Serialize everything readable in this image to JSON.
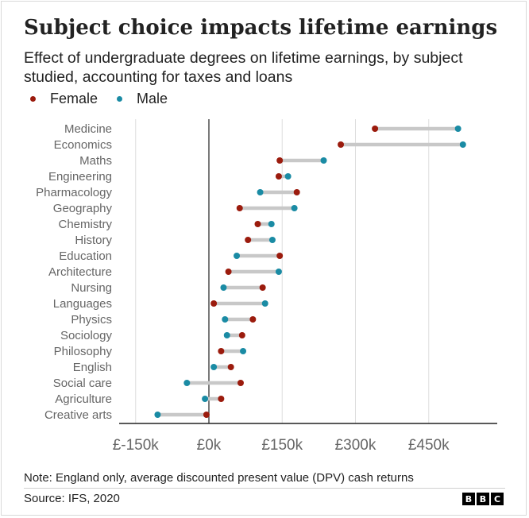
{
  "title": "Subject choice impacts lifetime earnings",
  "subtitle": "Effect of undergraduate degrees on lifetime earnings, by subject studied, accounting for taxes and loans",
  "note": "Note: England only, average discounted present value (DPV) cash returns",
  "source": "Source: IFS, 2020",
  "logo": [
    "B",
    "B",
    "C"
  ],
  "colors": {
    "female": "#9b1b0d",
    "male": "#1a8ba4",
    "connector": "#c8c8c8",
    "axis": "#222222",
    "grid": "#dddddd"
  },
  "chart_data": {
    "type": "dumbbell",
    "title": "Subject choice impacts lifetime earnings",
    "xlabel": "",
    "ylabel": "",
    "xlim": [
      -200,
      560
    ],
    "xticks": [
      -150,
      0,
      150,
      300,
      450
    ],
    "xtick_labels": [
      "£-150k",
      "£0k",
      "£150k",
      "£300k",
      "£450k"
    ],
    "units": "£ thousands",
    "legend": [
      "Female",
      "Male"
    ],
    "categories": [
      "Medicine",
      "Economics",
      "Maths",
      "Engineering",
      "Pharmacology",
      "Geography",
      "Chemistry",
      "History",
      "Education",
      "Architecture",
      "Nursing",
      "Languages",
      "Physics",
      "Sociology",
      "Philosophy",
      "English",
      "Social care",
      "Agriculture",
      "Creative arts"
    ],
    "series": [
      {
        "name": "Female",
        "values": [
          340,
          270,
          145,
          143,
          180,
          63,
          100,
          80,
          145,
          40,
          110,
          10,
          90,
          68,
          25,
          45,
          65,
          25,
          -5
        ]
      },
      {
        "name": "Male",
        "values": [
          510,
          520,
          235,
          162,
          105,
          175,
          128,
          130,
          57,
          143,
          30,
          115,
          33,
          37,
          70,
          10,
          -45,
          -8,
          -105
        ]
      }
    ]
  }
}
